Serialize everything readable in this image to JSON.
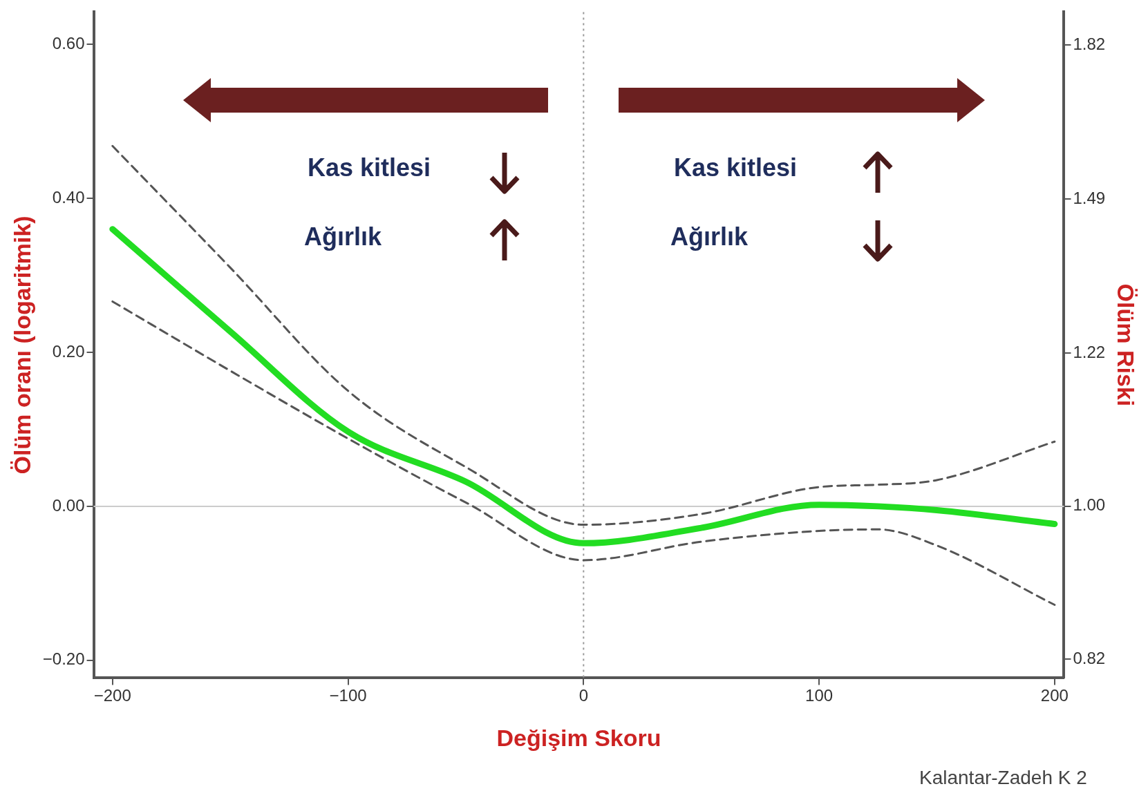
{
  "chart_data": {
    "type": "line",
    "xlabel": "Değişim Skoru",
    "ylabel": "Ölüm oranı (logaritmik)",
    "y2label": "Ölüm Riski",
    "x": [
      -200,
      -150,
      -100,
      -50,
      0,
      50,
      100,
      125,
      150,
      200
    ],
    "series": [
      {
        "color": "#22dd22",
        "values": [
          0.36,
          0.227,
          0.097,
          0.032,
          -0.048,
          -0.028,
          0.002,
          0.0,
          -0.005,
          -0.023
        ]
      },
      {
        "color": "#555555",
        "line_style": "dashed",
        "values": [
          0.468,
          0.31,
          0.15,
          0.051,
          -0.024,
          -0.01,
          0.025,
          0.028,
          0.034,
          0.084
        ]
      },
      {
        "color": "#555555",
        "line_style": "dashed",
        "values": [
          0.266,
          0.176,
          0.088,
          0.005,
          -0.07,
          -0.046,
          -0.032,
          -0.03,
          -0.051,
          -0.128
        ]
      }
    ],
    "xlim": [
      -208,
      204
    ],
    "ylim": [
      -0.223,
      0.642
    ],
    "y2lim": [
      0.8,
      1.9
    ],
    "log": "y2",
    "xticks": [
      {
        "value": -200,
        "label": "−200"
      },
      {
        "value": -100,
        "label": "−100"
      },
      0,
      100,
      200
    ],
    "yticks": [
      {
        "value": -0.2,
        "label": "−0.20"
      },
      {
        "value": 0,
        "label": "0.00"
      },
      {
        "value": 0.2,
        "label": "0.20"
      },
      {
        "value": 0.4,
        "label": "0.40"
      },
      {
        "value": 0.6,
        "label": "0.60"
      }
    ],
    "y2ticks": [
      0.82,
      {
        "value": 1,
        "label": "1.00"
      },
      1.22,
      1.49,
      1.82
    ],
    "ref_lines": [
      {
        "axis": "y",
        "value": 0,
        "color": "#cccccc",
        "line_style": "solid"
      },
      {
        "axis": "x",
        "value": 0,
        "color": "#999999",
        "line_style": "dotted"
      }
    ],
    "annotations": [
      "Kas kitlesi",
      "Ağırlık",
      "Kas kitlesi",
      "Ağırlık",
      "Kalantar-Zadeh K 2"
    ],
    "legend": false
  }
}
